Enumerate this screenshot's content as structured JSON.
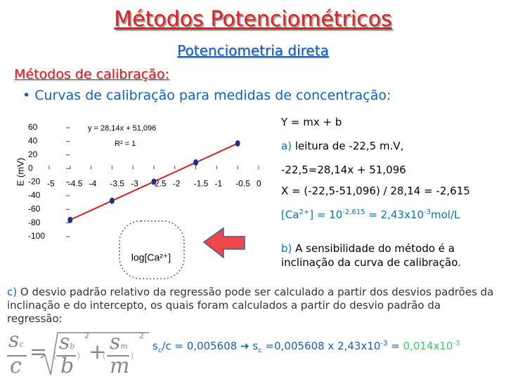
{
  "title": "Métodos Potenciométricos",
  "subtitle": "Potenciometria direta",
  "section": "Métodos de calibração:",
  "bullet": "Curvas de calibração para medidas de concentração:",
  "chart_data": {
    "type": "scatter",
    "equation": "y = 28,14x + 51,096",
    "r2": "R² = 1",
    "x_label": "log[Ca²⁺]",
    "y_label": "E (mV)",
    "x": [
      -4.5,
      -3.5,
      -2.5,
      -1.5,
      -0.5
    ],
    "series": [
      {
        "color": "#1f2f8f",
        "line_color": "#d62020",
        "values": [
          -75.5,
          -47.4,
          -19.3,
          8.9,
          37.0
        ]
      }
    ],
    "xlim": [
      -5,
      0
    ],
    "ylim": [
      -100,
      60
    ],
    "xticks": [
      -5,
      -4.5,
      -4,
      -3.5,
      -3,
      -2.5,
      -2,
      -1.5,
      -1,
      -0.5,
      0
    ],
    "yticks": [
      60,
      40,
      20,
      0,
      -20,
      -40,
      -60,
      -80,
      -100
    ]
  },
  "right_notes": [
    {
      "parts": [
        {
          "text": "Y = mx + b"
        }
      ]
    },
    {
      "parts": [
        {
          "text": "a)",
          "color": "#0070c0"
        },
        {
          "text": " leitura de -22,5 m.V,"
        }
      ]
    },
    {
      "parts": [
        {
          "text": "-22,5=28,14x + 51,096"
        }
      ]
    },
    {
      "parts": [
        {
          "text": "X = (-22,5-51,096) / 28,14 = -2,615"
        }
      ]
    },
    {
      "parts": [
        {
          "text": "[Ca",
          "color": "#0070c0"
        },
        {
          "text": "2+",
          "sup": true,
          "color": "#0070c0"
        },
        {
          "text": "] = 10",
          "color": "#0070c0"
        },
        {
          "text": "-2,615",
          "sup": true,
          "color": "#0070c0"
        },
        {
          "text": " = 2,43x10",
          "color": "#0070c0"
        },
        {
          "text": "-3",
          "sup": true,
          "color": "#0070c0"
        },
        {
          "text": "mol/L",
          "color": "#0070c0"
        }
      ]
    },
    {
      "parts": [
        {
          "text": "b)",
          "color": "#0070c0"
        },
        {
          "text": " A sensibilidade do método é a inclinação da curva de calibração."
        }
      ]
    }
  ],
  "paragraph": {
    "parts": [
      {
        "text": "c)",
        "color": "#0070c0"
      },
      {
        "text": " O desvio padrão relativo da regressão pode ser calculado a partir dos desvios padrões da inclinação e do intercepto, os quais foram calculados a partir do desvio padrão da regressão:"
      }
    ]
  },
  "formula": {
    "s": "s",
    "c": "c",
    "b": "b",
    "m": "m",
    "exp": "2",
    "plus": "+",
    "eq": "="
  },
  "result": {
    "parts": [
      {
        "text": "s"
      },
      {
        "text": "c",
        "sub": true
      },
      {
        "text": "/c = 0,005608 "
      },
      {
        "text": "➔"
      },
      {
        "text": " s"
      },
      {
        "text": "c",
        "sub": true
      },
      {
        "text": " =0,005608 x 2,43x10"
      },
      {
        "text": "-3",
        "sup": true
      },
      {
        "text": " = "
      },
      {
        "text": "0,014x10",
        "color": "#33cc66"
      },
      {
        "text": "-3",
        "sup": true,
        "color": "#33cc66"
      }
    ]
  }
}
